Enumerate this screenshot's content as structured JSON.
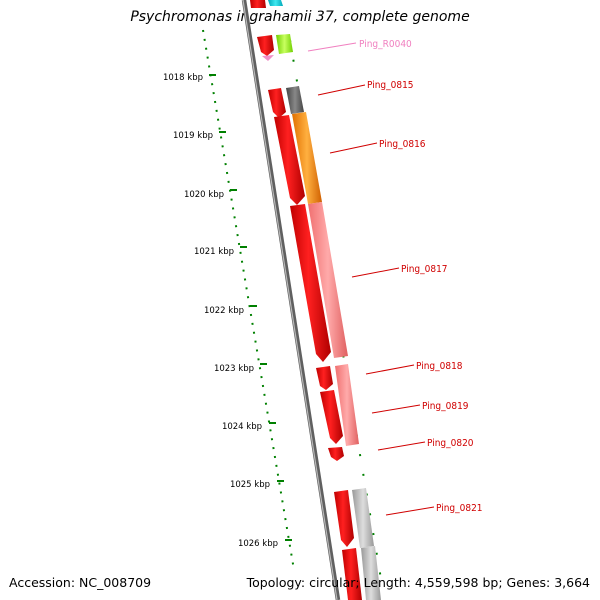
{
  "title": "Psychromonas ingrahamii 37, complete genome",
  "footer": {
    "accession": "Accession: NC_008709",
    "stats": "Topology: circular; Length: 4,559,598 bp; Genes: 3,664"
  },
  "scale_ticks": [
    "1018 kbp",
    "1019 kbp",
    "1020 kbp",
    "1021 kbp",
    "1022 kbp",
    "1023 kbp",
    "1024 kbp",
    "1025 kbp",
    "1026 kbp"
  ],
  "gene_labels": [
    {
      "text": "Ping_R0040",
      "color": "#f080c0"
    },
    {
      "text": "Ping_0815",
      "color": "#d00000"
    },
    {
      "text": "Ping_0816",
      "color": "#d00000"
    },
    {
      "text": "Ping_0817",
      "color": "#d00000"
    },
    {
      "text": "Ping_0818",
      "color": "#d00000"
    },
    {
      "text": "Ping_0819",
      "color": "#d00000"
    },
    {
      "text": "Ping_0820",
      "color": "#d00000"
    },
    {
      "text": "Ping_0821",
      "color": "#d00000"
    }
  ],
  "colors": {
    "backbone": "#808080",
    "cds": "#ff0000",
    "dotted_track": "#008000",
    "tick": "#000000"
  }
}
